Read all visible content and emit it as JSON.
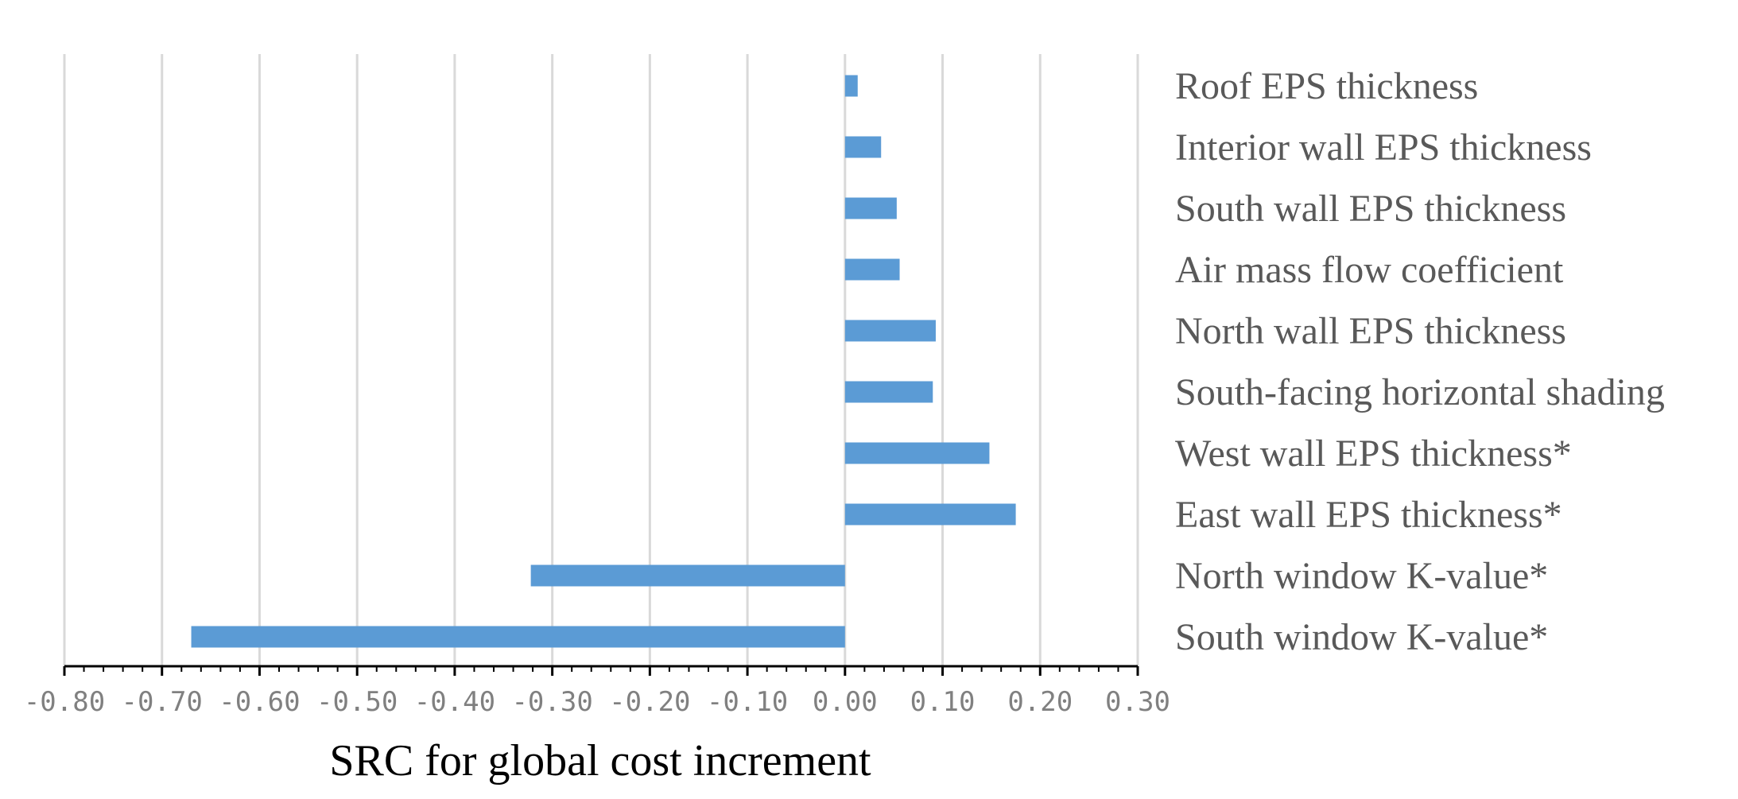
{
  "chart_data": {
    "type": "bar",
    "orientation": "horizontal",
    "categories": [
      "Roof EPS thickness",
      "Interior wall EPS thickness",
      "South wall EPS thickness",
      "Air mass flow coefficient",
      "North wall EPS thickness",
      "South-facing horizontal shading",
      "West wall EPS thickness*",
      "East wall EPS thickness*",
      "North window K-value*",
      "South window K-value*"
    ],
    "values": [
      0.013,
      0.037,
      0.053,
      0.056,
      0.093,
      0.09,
      0.148,
      0.175,
      -0.322,
      -0.67
    ],
    "xlabel": "SRC for  global cost increment",
    "ylabel": "",
    "title": "",
    "xlim": [
      -0.8,
      0.3
    ],
    "x_ticks": [
      -0.8,
      -0.7,
      -0.6,
      -0.5,
      -0.4,
      -0.3,
      -0.2,
      -0.1,
      0.0,
      0.1,
      0.2,
      0.3
    ],
    "x_tick_labels": [
      "-0.80",
      "-0.70",
      "-0.60",
      "-0.50",
      "-0.40",
      "-0.30",
      "-0.20",
      "-0.10",
      "0.00",
      "0.10",
      "0.20",
      "0.30"
    ],
    "grid": "vertical",
    "legend": "none",
    "bar_color": "#5b9bd5",
    "grid_color": "#d9d9d9"
  }
}
